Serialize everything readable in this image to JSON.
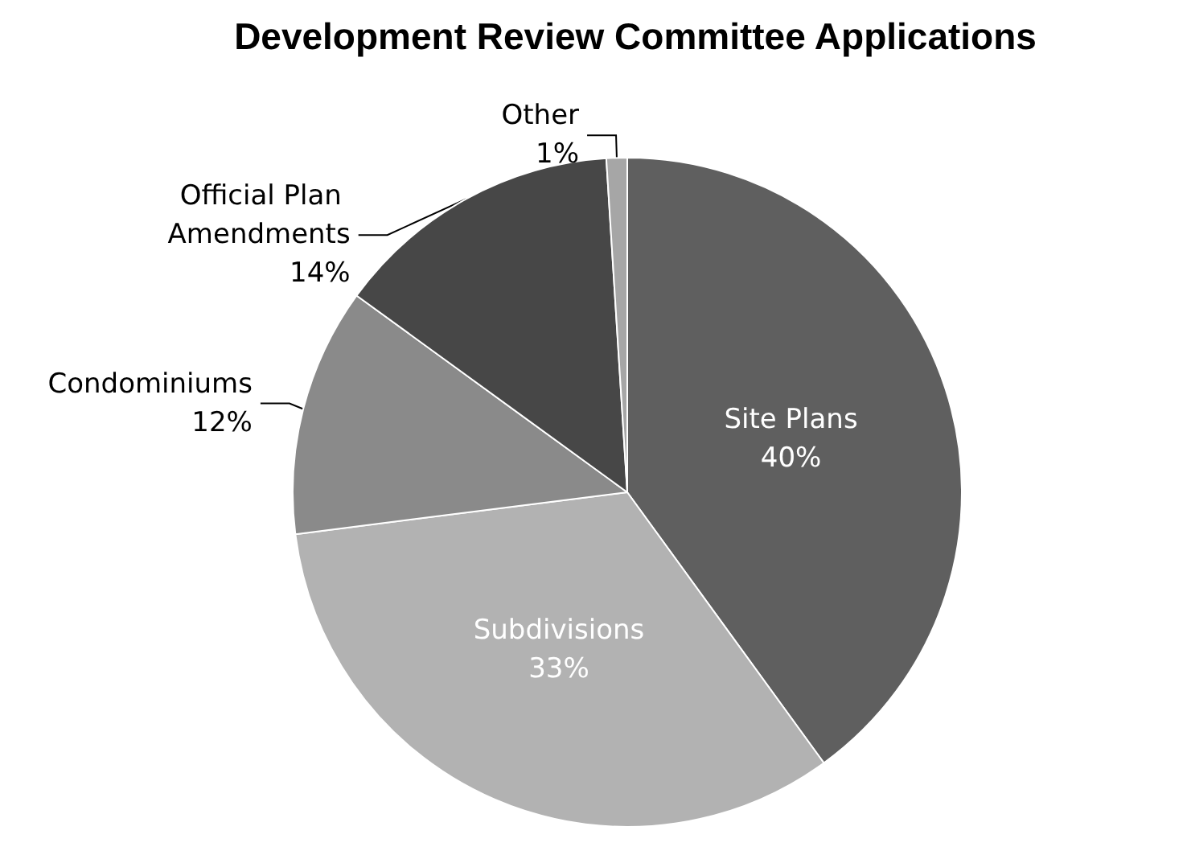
{
  "chart_data": {
    "type": "pie",
    "title": "Development Review Committee Applications",
    "categories": [
      "Site Plans",
      "Subdivisions",
      "Condominiums",
      "Official Plan Amendments",
      "Other"
    ],
    "values": [
      40,
      33,
      12,
      14,
      1
    ],
    "value_labels": [
      "40%",
      "33%",
      "12%",
      "14%",
      "1%"
    ],
    "colors": [
      "#5f5f5f",
      "#b2b2b2",
      "#8a8a8a",
      "#474747",
      "#a6a6a6"
    ],
    "legend": false
  }
}
